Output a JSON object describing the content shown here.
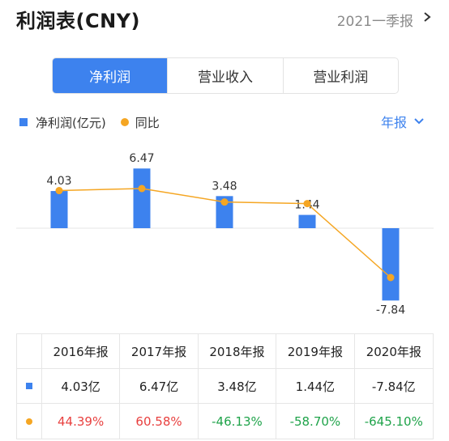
{
  "header": {
    "title": "利润表(CNY)",
    "period": "2021一季报"
  },
  "tabs": [
    {
      "label": "净利润",
      "active": true
    },
    {
      "label": "营业收入",
      "active": false
    },
    {
      "label": "营业利润",
      "active": false
    }
  ],
  "legend": {
    "bar_label": "净利润(亿元)",
    "line_label": "同比"
  },
  "frequency": "年报",
  "colors": {
    "bar": "#3d82ee",
    "line": "#f5a623",
    "positive": "#e8403f",
    "negative": "#1fa34a"
  },
  "chart_data": {
    "type": "bar",
    "categories": [
      "2016年报",
      "2017年报",
      "2018年报",
      "2019年报",
      "2020年报"
    ],
    "series": [
      {
        "name": "净利润(亿元)",
        "type": "bar",
        "values": [
          4.03,
          6.47,
          3.48,
          1.44,
          -7.84
        ]
      },
      {
        "name": "同比",
        "type": "line",
        "values": [
          44.39,
          60.58,
          -46.13,
          -58.7,
          -645.1
        ]
      }
    ],
    "data_labels": [
      "4.03",
      "6.47",
      "3.48",
      "1.44",
      "-7.84"
    ]
  },
  "table": {
    "headers": [
      "2016年报",
      "2017年报",
      "2018年报",
      "2019年报",
      "2020年报"
    ],
    "profit_row": [
      "4.03亿",
      "6.47亿",
      "3.48亿",
      "1.44亿",
      "-7.84亿"
    ],
    "yoy_row": [
      "44.39%",
      "60.58%",
      "-46.13%",
      "-58.70%",
      "-645.10%"
    ]
  }
}
